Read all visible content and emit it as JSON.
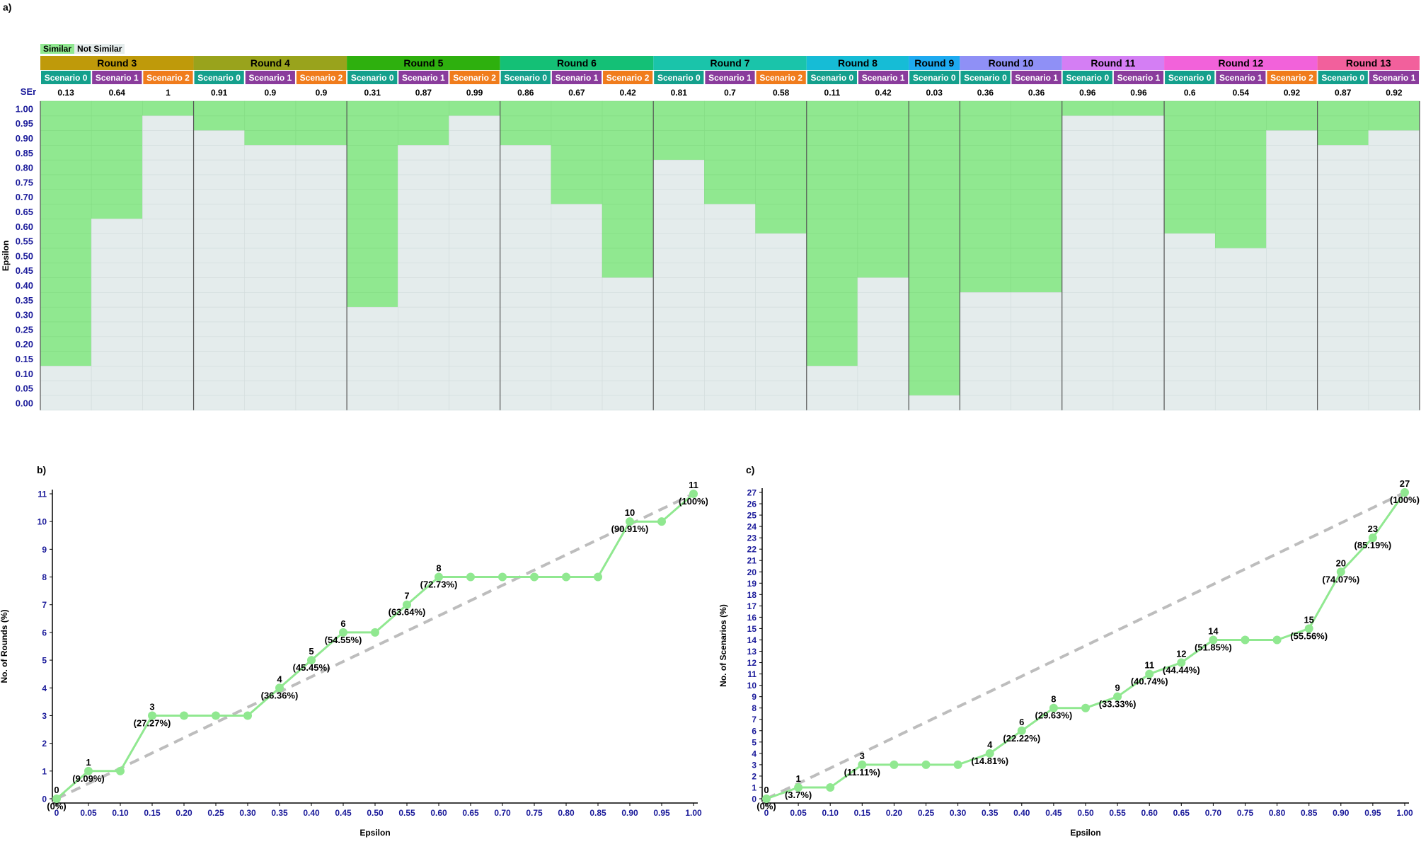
{
  "panels": {
    "a": "a)",
    "b": "b)",
    "c": "c)"
  },
  "legend": {
    "similar": "Similar",
    "not_similar": "Not Similar"
  },
  "colors": {
    "similar": "#90e890",
    "not_similar": "#e4ecec",
    "axis_text": "#1a1a9a",
    "line": "#90e890",
    "reference_line": "#bdbdbd",
    "scenario_0": "#14a08c",
    "scenario_1": "#8a3c9c",
    "scenario_2": "#f07c1c"
  },
  "chart_data": [
    {
      "type": "heatmap",
      "panel": "a",
      "ylabel": "Epsilon",
      "row_label": "SEr",
      "y_ticks": [
        "1.00",
        "0.95",
        "0.90",
        "0.85",
        "0.80",
        "0.75",
        "0.70",
        "0.65",
        "0.60",
        "0.55",
        "0.50",
        "0.45",
        "0.40",
        "0.35",
        "0.30",
        "0.25",
        "0.20",
        "0.15",
        "0.10",
        "0.05",
        "0.00"
      ],
      "rounds": [
        {
          "name": "Round 3",
          "color": "#bf9a0a",
          "scenarios": [
            {
              "name": "Scenario 0",
              "ser": "0.13"
            },
            {
              "name": "Scenario 1",
              "ser": "0.64"
            },
            {
              "name": "Scenario 2",
              "ser": "1"
            }
          ]
        },
        {
          "name": "Round 4",
          "color": "#99a31c",
          "scenarios": [
            {
              "name": "Scenario 0",
              "ser": "0.91"
            },
            {
              "name": "Scenario 1",
              "ser": "0.9"
            },
            {
              "name": "Scenario 2",
              "ser": "0.9"
            }
          ]
        },
        {
          "name": "Round 5",
          "color": "#2eb00e",
          "scenarios": [
            {
              "name": "Scenario 0",
              "ser": "0.31"
            },
            {
              "name": "Scenario 1",
              "ser": "0.87"
            },
            {
              "name": "Scenario 2",
              "ser": "0.99"
            }
          ]
        },
        {
          "name": "Round 6",
          "color": "#14c076",
          "scenarios": [
            {
              "name": "Scenario 0",
              "ser": "0.86"
            },
            {
              "name": "Scenario 1",
              "ser": "0.67"
            },
            {
              "name": "Scenario 2",
              "ser": "0.42"
            }
          ]
        },
        {
          "name": "Round 7",
          "color": "#1ac4aa",
          "scenarios": [
            {
              "name": "Scenario 0",
              "ser": "0.81"
            },
            {
              "name": "Scenario 1",
              "ser": "0.7"
            },
            {
              "name": "Scenario 2",
              "ser": "0.58"
            }
          ]
        },
        {
          "name": "Round 8",
          "color": "#16bcd6",
          "scenarios": [
            {
              "name": "Scenario 0",
              "ser": "0.11"
            },
            {
              "name": "Scenario 1",
              "ser": "0.42"
            }
          ]
        },
        {
          "name": "Round 9",
          "color": "#1eaaf0",
          "scenarios": [
            {
              "name": "Scenario 0",
              "ser": "0.03"
            }
          ]
        },
        {
          "name": "Round 10",
          "color": "#8f90f6",
          "scenarios": [
            {
              "name": "Scenario 0",
              "ser": "0.36"
            },
            {
              "name": "Scenario 1",
              "ser": "0.36"
            }
          ]
        },
        {
          "name": "Round 11",
          "color": "#d47ef4",
          "scenarios": [
            {
              "name": "Scenario 0",
              "ser": "0.96"
            },
            {
              "name": "Scenario 1",
              "ser": "0.96"
            }
          ]
        },
        {
          "name": "Round 12",
          "color": "#f262da",
          "scenarios": [
            {
              "name": "Scenario 0",
              "ser": "0.6"
            },
            {
              "name": "Scenario 1",
              "ser": "0.54"
            },
            {
              "name": "Scenario 2",
              "ser": "0.92"
            }
          ]
        },
        {
          "name": "Round 13",
          "color": "#f2609c",
          "scenarios": [
            {
              "name": "Scenario 0",
              "ser": "0.87"
            },
            {
              "name": "Scenario 1",
              "ser": "0.92"
            }
          ]
        }
      ]
    },
    {
      "type": "line",
      "panel": "b",
      "xlabel": "Epsilon",
      "ylabel": "No. of Rounds (%)",
      "xlim": [
        0,
        1
      ],
      "ylim": [
        0,
        11
      ],
      "x_ticks": [
        "0",
        "0.05",
        "0.10",
        "0.15",
        "0.20",
        "0.25",
        "0.30",
        "0.35",
        "0.40",
        "0.45",
        "0.50",
        "0.55",
        "0.60",
        "0.65",
        "0.70",
        "0.75",
        "0.80",
        "0.85",
        "0.90",
        "0.95",
        "1.00"
      ],
      "y_ticks": [
        "0",
        "1",
        "2",
        "3",
        "4",
        "5",
        "6",
        "7",
        "8",
        "9",
        "10",
        "11"
      ],
      "x": [
        0,
        0.05,
        0.1,
        0.15,
        0.2,
        0.25,
        0.3,
        0.35,
        0.4,
        0.45,
        0.5,
        0.55,
        0.6,
        0.65,
        0.7,
        0.75,
        0.8,
        0.85,
        0.9,
        0.95,
        1.0
      ],
      "values": [
        0,
        1,
        1,
        3,
        3,
        3,
        3,
        4,
        5,
        6,
        6,
        7,
        8,
        8,
        8,
        8,
        8,
        8,
        10,
        10,
        11
      ],
      "reference_line": [
        [
          0,
          0
        ],
        [
          1,
          11
        ]
      ],
      "labels": [
        {
          "x": 0,
          "y": 0,
          "count": "0",
          "pct": "(0%)"
        },
        {
          "x": 0.05,
          "y": 1,
          "count": "1",
          "pct": "(9.09%)"
        },
        {
          "x": 0.15,
          "y": 3,
          "count": "3",
          "pct": "(27.27%)"
        },
        {
          "x": 0.35,
          "y": 4,
          "count": "4",
          "pct": "(36.36%)"
        },
        {
          "x": 0.4,
          "y": 5,
          "count": "5",
          "pct": "(45.45%)"
        },
        {
          "x": 0.45,
          "y": 6,
          "count": "6",
          "pct": "(54.55%)"
        },
        {
          "x": 0.55,
          "y": 7,
          "count": "7",
          "pct": "(63.64%)"
        },
        {
          "x": 0.6,
          "y": 8,
          "count": "8",
          "pct": "(72.73%)"
        },
        {
          "x": 0.9,
          "y": 10,
          "count": "10",
          "pct": "(90.91%)"
        },
        {
          "x": 1.0,
          "y": 11,
          "count": "11",
          "pct": "(100%)"
        }
      ]
    },
    {
      "type": "line",
      "panel": "c",
      "xlabel": "Epsilon",
      "ylabel": "No. of Scenarios (%)",
      "xlim": [
        0,
        1
      ],
      "ylim": [
        0,
        27
      ],
      "x_ticks": [
        "0",
        "0.05",
        "0.10",
        "0.15",
        "0.20",
        "0.25",
        "0.30",
        "0.35",
        "0.40",
        "0.45",
        "0.50",
        "0.55",
        "0.60",
        "0.65",
        "0.70",
        "0.75",
        "0.80",
        "0.85",
        "0.90",
        "0.95",
        "1.00"
      ],
      "y_ticks": [
        "0",
        "1",
        "2",
        "3",
        "4",
        "5",
        "6",
        "7",
        "8",
        "9",
        "10",
        "11",
        "12",
        "13",
        "14",
        "15",
        "16",
        "17",
        "18",
        "19",
        "20",
        "21",
        "22",
        "23",
        "24",
        "25",
        "26",
        "27"
      ],
      "x": [
        0,
        0.05,
        0.1,
        0.15,
        0.2,
        0.25,
        0.3,
        0.35,
        0.4,
        0.45,
        0.5,
        0.55,
        0.6,
        0.65,
        0.7,
        0.75,
        0.8,
        0.85,
        0.9,
        0.95,
        1.0
      ],
      "values": [
        0,
        1,
        1,
        3,
        3,
        3,
        3,
        4,
        6,
        8,
        8,
        9,
        11,
        12,
        14,
        14,
        14,
        15,
        20,
        23,
        27
      ],
      "reference_line": [
        [
          0,
          0
        ],
        [
          1,
          27
        ]
      ],
      "labels": [
        {
          "x": 0,
          "y": 0,
          "count": "0",
          "pct": "(0%)"
        },
        {
          "x": 0.05,
          "y": 1,
          "count": "1",
          "pct": "(3.7%)"
        },
        {
          "x": 0.15,
          "y": 3,
          "count": "3",
          "pct": "(11.11%)"
        },
        {
          "x": 0.35,
          "y": 4,
          "count": "4",
          "pct": "(14.81%)"
        },
        {
          "x": 0.4,
          "y": 6,
          "count": "6",
          "pct": "(22.22%)"
        },
        {
          "x": 0.45,
          "y": 8,
          "count": "8",
          "pct": "(29.63%)"
        },
        {
          "x": 0.55,
          "y": 9,
          "count": "9",
          "pct": "(33.33%)"
        },
        {
          "x": 0.6,
          "y": 11,
          "count": "11",
          "pct": "(40.74%)"
        },
        {
          "x": 0.65,
          "y": 12,
          "count": "12",
          "pct": "(44.44%)"
        },
        {
          "x": 0.7,
          "y": 14,
          "count": "14",
          "pct": "(51.85%)"
        },
        {
          "x": 0.85,
          "y": 15,
          "count": "15",
          "pct": "(55.56%)"
        },
        {
          "x": 0.9,
          "y": 20,
          "count": "20",
          "pct": "(74.07%)"
        },
        {
          "x": 0.95,
          "y": 23,
          "count": "23",
          "pct": "(85.19%)"
        },
        {
          "x": 1.0,
          "y": 27,
          "count": "27",
          "pct": "(100%)"
        }
      ]
    }
  ]
}
